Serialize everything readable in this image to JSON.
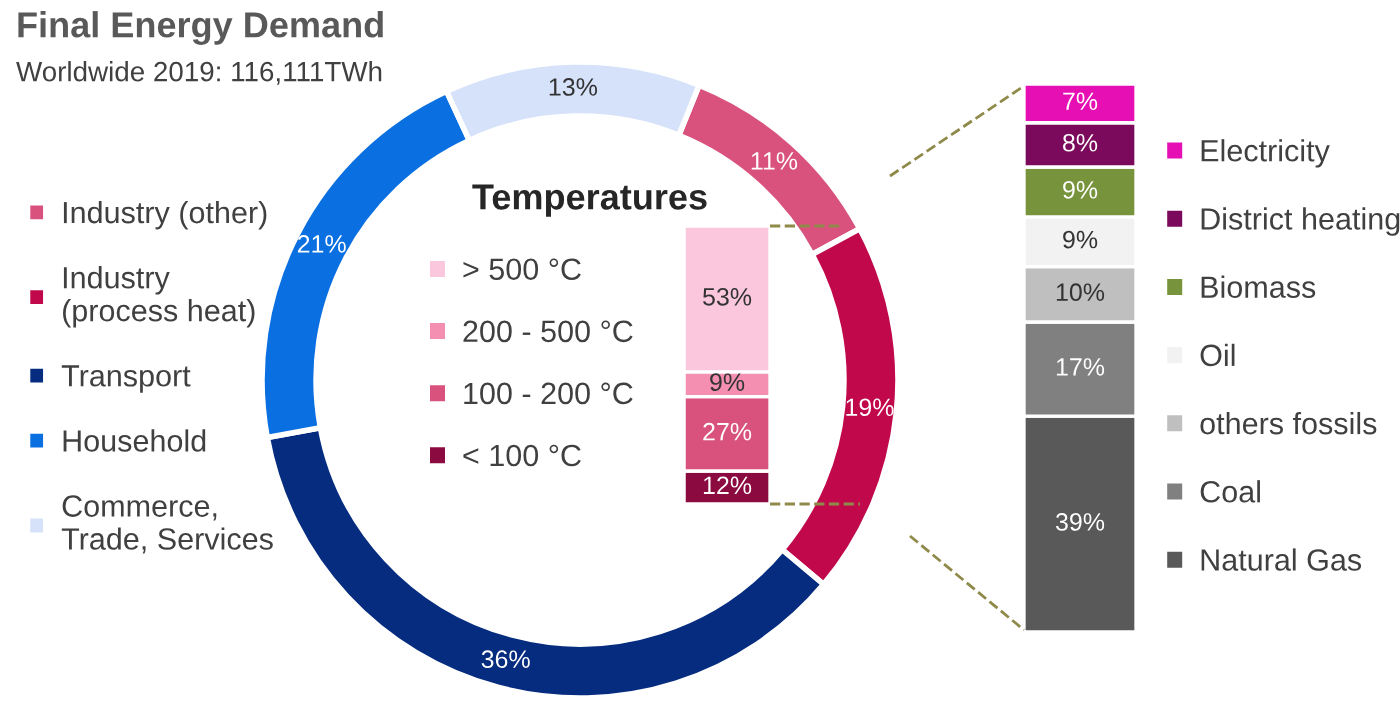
{
  "chart_data": [
    {
      "type": "donut",
      "title": "Final Energy Demand",
      "subtitle": "Worldwide 2019: 116,111TWh",
      "categories": [
        "Industry (other)",
        "Industry\n(process heat)",
        "Transport",
        "Household",
        "Commerce,\nTrade, Services"
      ],
      "values": [
        11,
        19,
        36,
        21,
        13
      ],
      "colors": [
        "#d9527e",
        "#c0084a",
        "#062c7f",
        "#0a6fe0",
        "#d6e2fa"
      ],
      "value_labels": [
        "11%",
        "19%",
        "36%",
        "21%",
        "13%"
      ],
      "legend": "left"
    },
    {
      "type": "bar",
      "title": "Temperatures",
      "categories": [
        null
      ],
      "stacked": true,
      "legend": "left",
      "series": [
        {
          "name": "< 100 °C",
          "color": "#8b0a3f",
          "values": [
            12
          ],
          "value_labels": [
            "12%"
          ]
        },
        {
          "name": "100 - 200 °C",
          "color": "#d9527e",
          "values": [
            27
          ],
          "value_labels": [
            "27%"
          ]
        },
        {
          "name": "200 - 500 °C",
          "color": "#f48fb1",
          "values": [
            9
          ],
          "value_labels": [
            "9%"
          ]
        },
        {
          "name": "> 500 °C",
          "color": "#fbc7dc",
          "values": [
            53
          ],
          "value_labels": [
            "53%"
          ]
        }
      ]
    },
    {
      "type": "bar",
      "categories": [
        null
      ],
      "stacked": true,
      "legend": "right",
      "series": [
        {
          "name": "Natural Gas",
          "color": "#595959",
          "values": [
            39
          ],
          "value_labels": [
            "39%"
          ]
        },
        {
          "name": "Coal",
          "color": "#808080",
          "values": [
            17
          ],
          "value_labels": [
            "17%"
          ]
        },
        {
          "name": "others fossils",
          "color": "#bfbfbf",
          "values": [
            10
          ],
          "value_labels": [
            "10%"
          ]
        },
        {
          "name": "Oil",
          "color": "#f2f2f2",
          "values": [
            9
          ],
          "value_labels": [
            "9%"
          ]
        },
        {
          "name": "Biomass",
          "color": "#77933c",
          "values": [
            9
          ],
          "value_labels": [
            "9%"
          ]
        },
        {
          "name": "District heating",
          "color": "#7b0a5c",
          "values": [
            8
          ],
          "value_labels": [
            "8%"
          ]
        },
        {
          "name": "Electricity",
          "color": "#e60fb4",
          "values": [
            7
          ],
          "value_labels": [
            "7%"
          ]
        }
      ]
    }
  ]
}
